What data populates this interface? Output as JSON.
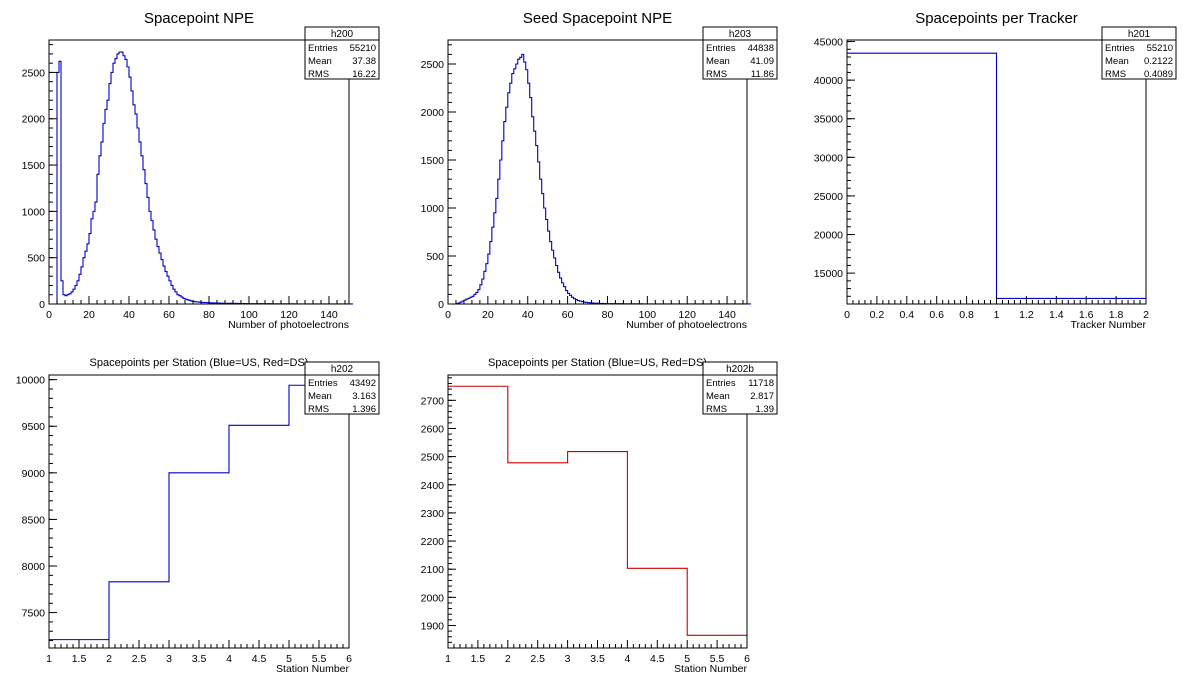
{
  "chart_data": [
    {
      "type": "histogram",
      "title": "Spacepoint NPE",
      "xlabel": "Number of photoelectrons",
      "ylabel": "",
      "xlim": [
        0,
        150
      ],
      "ylim": [
        0,
        2850
      ],
      "x_ticks": [
        0,
        20,
        40,
        60,
        80,
        100,
        120,
        140
      ],
      "y_ticks": [
        0,
        500,
        1000,
        1500,
        2000,
        2500
      ],
      "color": "#0000cc",
      "bin_width": 1,
      "values": [
        0,
        0,
        0,
        0,
        2500,
        2620,
        250,
        100,
        90,
        100,
        110,
        130,
        160,
        200,
        250,
        320,
        400,
        500,
        570,
        650,
        760,
        920,
        1000,
        1100,
        1400,
        1600,
        1750,
        1950,
        2100,
        2200,
        2380,
        2500,
        2600,
        2650,
        2700,
        2720,
        2720,
        2680,
        2640,
        2560,
        2450,
        2300,
        2150,
        2050,
        1900,
        1750,
        1600,
        1450,
        1300,
        1150,
        1000,
        900,
        800,
        700,
        620,
        550,
        480,
        410,
        350,
        300,
        250,
        200,
        160,
        130,
        100,
        90,
        75,
        60,
        52,
        45,
        38,
        32,
        28,
        24,
        22,
        20,
        18,
        16,
        15,
        14,
        13,
        12,
        11,
        10,
        10,
        9,
        9,
        8,
        8,
        7,
        7,
        7,
        6,
        6,
        6,
        5,
        5,
        5,
        5,
        4,
        4,
        4,
        4,
        4,
        3,
        3,
        3,
        3,
        3,
        3,
        3,
        2,
        2,
        2,
        2,
        2,
        2,
        2,
        2,
        2,
        2,
        2,
        2,
        1,
        1,
        1,
        1,
        1,
        1,
        1,
        1,
        1,
        1,
        1,
        1,
        1,
        1,
        1,
        1,
        1,
        1,
        1,
        1,
        1,
        1,
        1,
        1,
        1,
        1,
        1,
        1,
        1
      ],
      "stats": {
        "name": "h200",
        "entries": "55210",
        "mean": "37.38",
        "rms": "16.22"
      }
    },
    {
      "type": "histogram",
      "title": "Seed Spacepoint NPE",
      "xlabel": "Number of photoelectrons",
      "ylabel": "",
      "xlim": [
        0,
        150
      ],
      "ylim": [
        0,
        2750
      ],
      "x_ticks": [
        0,
        20,
        40,
        60,
        80,
        100,
        120,
        140
      ],
      "y_ticks": [
        0,
        500,
        1000,
        1500,
        2000,
        2500
      ],
      "color": "#0000cc",
      "bin_width": 1,
      "values": [
        0,
        0,
        0,
        0,
        5,
        10,
        20,
        30,
        40,
        50,
        60,
        70,
        80,
        100,
        120,
        150,
        200,
        260,
        340,
        420,
        520,
        650,
        800,
        950,
        1100,
        1300,
        1500,
        1700,
        1900,
        2050,
        2200,
        2300,
        2400,
        2450,
        2500,
        2550,
        2570,
        2600,
        2520,
        2440,
        2300,
        2150,
        1950,
        1800,
        1650,
        1480,
        1300,
        1150,
        1000,
        880,
        760,
        650,
        560,
        480,
        400,
        330,
        270,
        220,
        180,
        140,
        110,
        90,
        70,
        55,
        45,
        36,
        30,
        25,
        20,
        17,
        14,
        12,
        10,
        9,
        8,
        7,
        6,
        6,
        5,
        5,
        4,
        4,
        4,
        3,
        3,
        3,
        3,
        3,
        2,
        2,
        2,
        2,
        2,
        2,
        2,
        2,
        2,
        2,
        1,
        1,
        1,
        1,
        1,
        1,
        1,
        1,
        1,
        1,
        1,
        1,
        1,
        1,
        1,
        1,
        1,
        1,
        1,
        1,
        1,
        1,
        1,
        1,
        1,
        1,
        1,
        1,
        1,
        1,
        1,
        1,
        1,
        1,
        1,
        1,
        1,
        1,
        1,
        1,
        1,
        1,
        1,
        1,
        1,
        1,
        1,
        1,
        1,
        1,
        1,
        1,
        1,
        1
      ],
      "stats": {
        "name": "h203",
        "entries": "44838",
        "mean": "41.09",
        "rms": "11.86"
      }
    },
    {
      "type": "histogram",
      "title": "Spacepoints per Tracker",
      "xlabel": "Tracker Number",
      "ylabel": "",
      "xlim": [
        0,
        2
      ],
      "ylim": [
        11000,
        45200
      ],
      "x_ticks": [
        0,
        0.2,
        0.4,
        0.6,
        0.8,
        1,
        1.2,
        1.4,
        1.6,
        1.8,
        2
      ],
      "y_ticks": [
        15000,
        20000,
        25000,
        30000,
        35000,
        40000,
        45000
      ],
      "color": "#0000cc",
      "edges": [
        0,
        1,
        2
      ],
      "values": [
        43492,
        11718
      ],
      "stats": {
        "name": "h201",
        "entries": "55210",
        "mean": "0.2122",
        "rms": "0.4089"
      }
    },
    {
      "type": "histogram",
      "title": "Spacepoints per Station (Blue=US, Red=DS)",
      "xlabel": "Station Number",
      "ylabel": "",
      "xlim": [
        1,
        6
      ],
      "ylim": [
        7120,
        10050
      ],
      "x_ticks": [
        1,
        1.5,
        2,
        2.5,
        3,
        3.5,
        4,
        4.5,
        5,
        5.5,
        6
      ],
      "y_ticks": [
        7500,
        8000,
        8500,
        9000,
        9500,
        10000
      ],
      "color": "#0000cc",
      "edges": [
        1,
        2,
        3,
        4,
        5,
        6
      ],
      "values": [
        7210,
        7830,
        9000,
        9510,
        9940
      ],
      "stats": {
        "name": "h202",
        "entries": "43492",
        "mean": "3.163",
        "rms": "1.396"
      }
    },
    {
      "type": "histogram",
      "title": "Spacepoints per Station (Blue=US, Red=DS)",
      "xlabel": "Station Number",
      "ylabel": "",
      "xlim": [
        1,
        6
      ],
      "ylim": [
        1820,
        2790
      ],
      "x_ticks": [
        1,
        1.5,
        2,
        2.5,
        3,
        3.5,
        4,
        4.5,
        5,
        5.5,
        6
      ],
      "y_ticks": [
        1900,
        2000,
        2100,
        2200,
        2300,
        2400,
        2500,
        2600,
        2700
      ],
      "color": "#cc0000",
      "edges": [
        1,
        2,
        3,
        4,
        5,
        6
      ],
      "values": [
        2750,
        2478,
        2518,
        2103,
        1865
      ],
      "stats": {
        "name": "h202b",
        "entries": "11718",
        "mean": "2.817",
        "rms": "1.39"
      }
    }
  ],
  "stats_labels": {
    "entries": "Entries",
    "mean": "Mean",
    "rms": "RMS"
  }
}
